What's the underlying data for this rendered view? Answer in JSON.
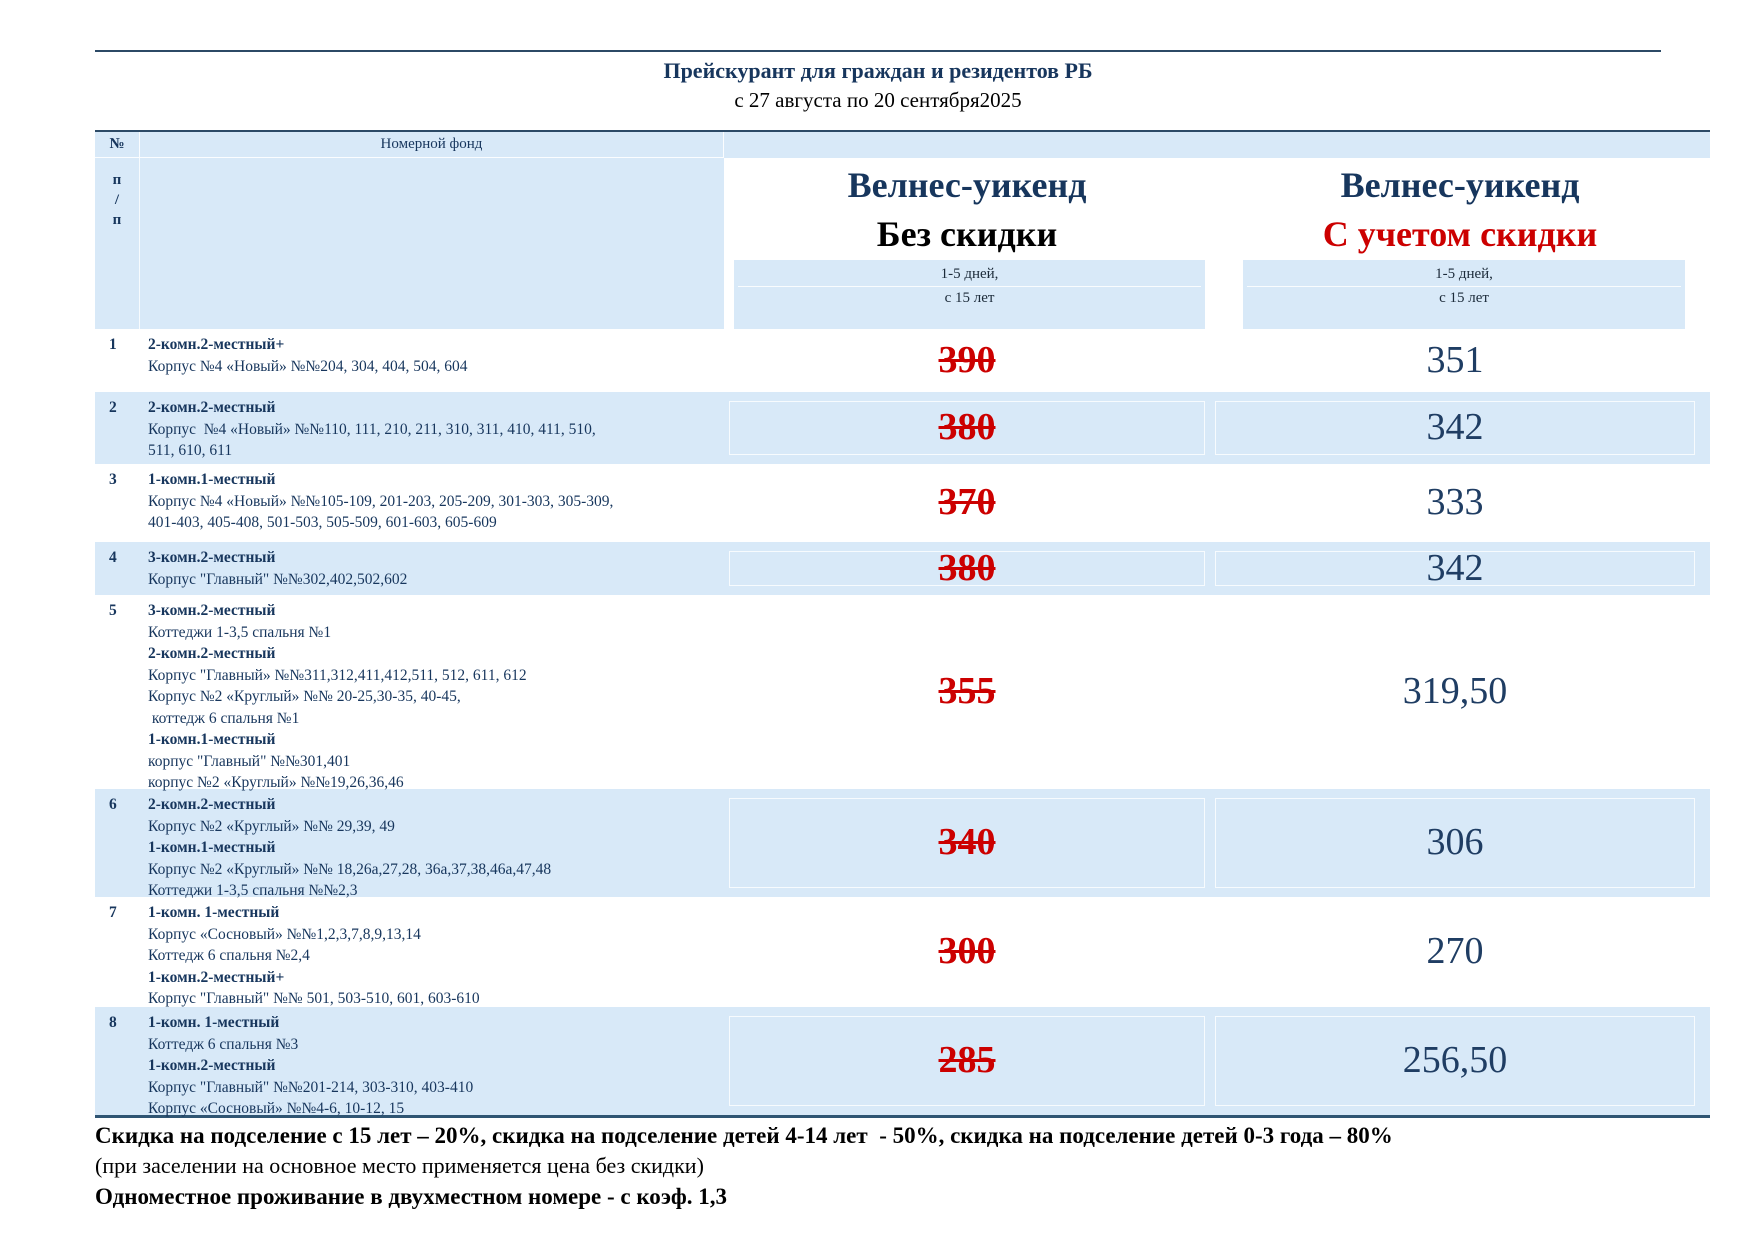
{
  "page": {
    "title": "Прейскурант для граждан и резидентов РБ",
    "subtitle": "с 27 августа по 20 сентября2025"
  },
  "table": {
    "header": {
      "num_symbol": "№",
      "num_sub": [
        "п",
        "/",
        "п"
      ],
      "fund_label": "Номерной фонд",
      "col_no_discount": {
        "title": "Велнес-уикенд",
        "subtitle": "Без скидки",
        "period": "1-5 дней,",
        "age": "с 15 лет"
      },
      "col_discount": {
        "title": "Велнес-уикенд",
        "subtitle": "С учетом скидки",
        "period": "1-5 дней,",
        "age": "с 15 лет"
      }
    },
    "rows": [
      {
        "num": "1",
        "lines": [
          {
            "text": "2-комн.2-местный+",
            "bold": true
          },
          {
            "text": "Корпус №4 «Новый» №№204, 304, 404, 504, 604",
            "bold": false
          }
        ],
        "price_old": "390",
        "price_new": "351"
      },
      {
        "num": "2",
        "lines": [
          {
            "text": "2-комн.2-местный",
            "bold": true
          },
          {
            "text": "Корпус  №4 «Новый» №№110, 111, 210, 211, 310, 311, 410, 411, 510,",
            "bold": false
          },
          {
            "text": "511, 610, 611",
            "bold": false
          }
        ],
        "price_old": "380",
        "price_new": "342"
      },
      {
        "num": "3",
        "lines": [
          {
            "text": "1-комн.1-местный",
            "bold": true
          },
          {
            "text": "Корпус №4 «Новый» №№105-109, 201-203, 205-209, 301-303, 305-309,",
            "bold": false
          },
          {
            "text": "401-403, 405-408, 501-503, 505-509, 601-603, 605-609",
            "bold": false
          }
        ],
        "price_old": "370",
        "price_new": "333"
      },
      {
        "num": "4",
        "lines": [
          {
            "text": "3-комн.2-местный",
            "bold": true
          },
          {
            "text": "Корпус \"Главный\" №№302,402,502,602",
            "bold": false
          }
        ],
        "price_old": "380",
        "price_new": "342"
      },
      {
        "num": "5",
        "lines": [
          {
            "text": "3-комн.2-местный",
            "bold": true
          },
          {
            "text": "Коттеджи 1-3,5 спальня №1",
            "bold": false
          },
          {
            "text": "2-комн.2-местный",
            "bold": true
          },
          {
            "text": "Корпус \"Главный» №№311,312,411,412,511, 512, 611, 612",
            "bold": false
          },
          {
            "text": "Корпус №2 «Круглый» №№ 20-25,30-35, 40-45,",
            "bold": false
          },
          {
            "text": " коттедж 6 спальня №1",
            "bold": false
          },
          {
            "text": "1-комн.1-местный",
            "bold": true
          },
          {
            "text": "корпус \"Главный\" №№301,401",
            "bold": false
          },
          {
            "text": "корпус №2 «Круглый» №№19,26,36,46",
            "bold": false
          }
        ],
        "price_old": "355",
        "price_new": "319,50"
      },
      {
        "num": "6",
        "lines": [
          {
            "text": "2-комн.2-местный",
            "bold": true
          },
          {
            "text": "Корпус №2 «Круглый» №№ 29,39, 49",
            "bold": false
          },
          {
            "text": "1-комн.1-местный",
            "bold": true
          },
          {
            "text": "Корпус №2 «Круглый» №№ 18,26а,27,28, 36а,37,38,46а,47,48",
            "bold": false
          },
          {
            "text": "Коттеджи 1-3,5 спальня №№2,3",
            "bold": false
          }
        ],
        "price_old": "340",
        "price_new": "306"
      },
      {
        "num": "7",
        "lines": [
          {
            "text": "1-комн. 1-местный",
            "bold": true
          },
          {
            "text": "Корпус «Сосновый» №№1,2,3,7,8,9,13,14",
            "bold": false
          },
          {
            "text": "Коттедж 6 спальня №2,4",
            "bold": false
          },
          {
            "text": "1-комн.2-местный+",
            "bold": true
          },
          {
            "text": "Корпус \"Главный\" №№ 501, 503-510, 601, 603-610",
            "bold": false
          }
        ],
        "price_old": "300",
        "price_new": "270"
      },
      {
        "num": "8",
        "lines": [
          {
            "text": "1-комн. 1-местный",
            "bold": true
          },
          {
            "text": "Коттедж 6 спальня №3",
            "bold": false
          },
          {
            "text": "1-комн.2-местный",
            "bold": true
          },
          {
            "text": "Корпус \"Главный\" №№201-214, 303-310, 403-410",
            "bold": false
          },
          {
            "text": "Корпус «Сосновый» №№4-6, 10-12, 15",
            "bold": false
          }
        ],
        "price_old": "285",
        "price_new": "256,50"
      }
    ]
  },
  "footer": {
    "line1": "Скидка на подселение с 15 лет – 20%, скидка на подселение детей 4-14 лет  - 50%, скидка на подселение детей 0-3 года – 80%",
    "line2": "(при заселении на основное место применяется цена без скидки)",
    "line3": "Одноместное проживание в двухместном номере - с коэф. 1,3"
  },
  "colors": {
    "accent_navy": "#17365d",
    "price_red": "#cc0000",
    "row_blue": "#d8e9f8",
    "rule_dark": "#2c4a66"
  }
}
